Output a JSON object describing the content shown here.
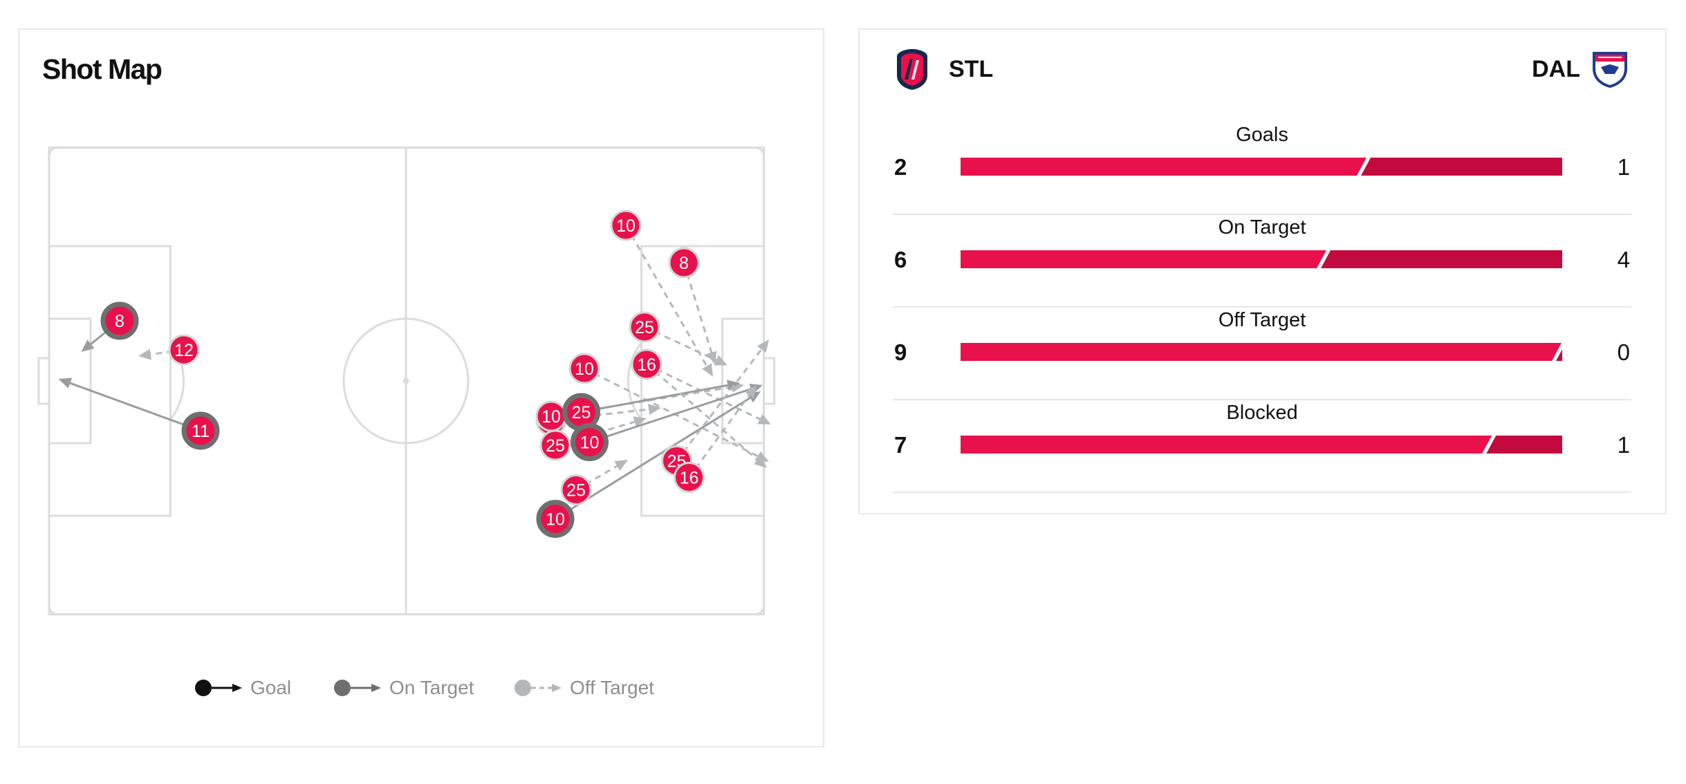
{
  "shot_map": {
    "title": "Shot Map",
    "colors": {
      "home": "#e8114b",
      "on_target_ring": "#6f6f6f",
      "off_target": "#b4b8bb",
      "goal": "#111111",
      "pitch_line": "#dcdcdc"
    },
    "shots": [
      {
        "number": "8",
        "result": "on_target",
        "from": [
          114,
          308
        ],
        "to": [
          77,
          338
        ]
      },
      {
        "number": "12",
        "result": "off_target",
        "from": [
          176,
          336
        ],
        "to": [
          132,
          342
        ]
      },
      {
        "number": "11",
        "result": "on_target",
        "from": [
          192,
          414
        ],
        "to": [
          55,
          364
        ]
      },
      {
        "number": "10",
        "result": "off_target",
        "from": [
          602,
          216
        ],
        "to": [
          686,
          362
        ]
      },
      {
        "number": "8",
        "result": "off_target",
        "from": [
          658,
          252
        ],
        "to": [
          688,
          350
        ]
      },
      {
        "number": "25",
        "result": "off_target",
        "from": [
          620,
          314
        ],
        "to": [
          700,
          351
        ]
      },
      {
        "number": "16",
        "result": "off_target",
        "from": [
          622,
          350
        ],
        "to": [
          742,
          408
        ]
      },
      {
        "number": "10",
        "result": "off_target",
        "from": [
          562,
          354
        ],
        "to": [
          740,
          444
        ]
      },
      {
        "number": "10",
        "result": "off_target",
        "from": [
          530,
          404
        ],
        "to": [
          636,
          392
        ]
      },
      {
        "number": "10",
        "result": "off_target",
        "from": [
          530,
          400
        ],
        "to": [
          716,
          370
        ]
      },
      {
        "number": "25",
        "result": "on_target",
        "from": [
          559,
          396
        ],
        "to": [
          712,
          368
        ]
      },
      {
        "number": "25",
        "result": "off_target",
        "from": [
          534,
          428
        ],
        "to": [
          622,
          402
        ]
      },
      {
        "number": "10",
        "result": "on_target",
        "from": [
          567,
          425
        ],
        "to": [
          734,
          370
        ]
      },
      {
        "number": "25",
        "result": "off_target",
        "from": [
          554,
          471
        ],
        "to": [
          604,
          442
        ]
      },
      {
        "number": "10",
        "result": "on_target",
        "from": [
          534,
          499
        ],
        "to": [
          732,
          376
        ]
      },
      {
        "number": "25",
        "result": "off_target",
        "from": [
          651,
          443
        ],
        "to": [
          740,
          326
        ]
      },
      {
        "number": "16",
        "result": "off_target",
        "from": [
          663,
          459
        ],
        "to": [
          728,
          370
        ]
      },
      {
        "number": "16",
        "result": "off_target",
        "from": [
          622,
          350
        ],
        "to": [
          738,
          450
        ]
      }
    ]
  },
  "legend": [
    {
      "label": "Goal",
      "type": "goal"
    },
    {
      "label": "On Target",
      "type": "on_target"
    },
    {
      "label": "Off Target",
      "type": "off_target"
    }
  ],
  "teams": {
    "home": {
      "abbr": "STL",
      "crest_icon": "st-louis-city-crest-icon",
      "color": "#e8114b"
    },
    "away": {
      "abbr": "DAL",
      "crest_icon": "fc-dallas-crest-icon",
      "color": "#c20a3f"
    }
  },
  "stats": [
    {
      "label": "Goals",
      "home": 2,
      "away": 1
    },
    {
      "label": "On Target",
      "home": 6,
      "away": 4
    },
    {
      "label": "Off Target",
      "home": 9,
      "away": 0
    },
    {
      "label": "Blocked",
      "home": 7,
      "away": 1
    }
  ]
}
